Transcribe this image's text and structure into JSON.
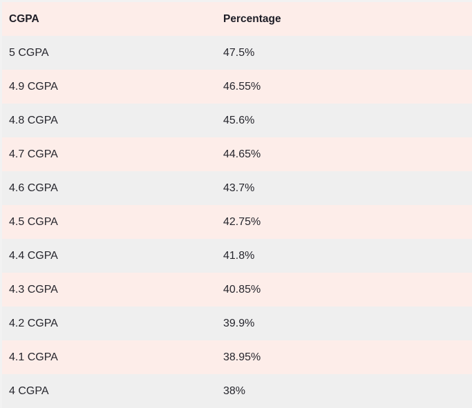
{
  "page": {
    "background": "#f2f2f2"
  },
  "table": {
    "colors": {
      "header_bg": "#fdede9",
      "row_pink": "#fdede9",
      "row_gray": "#efefef",
      "text": "#26262d",
      "header_text": "#1d1d26"
    },
    "columns": [
      {
        "key": "cgpa",
        "label": "CGPA"
      },
      {
        "key": "percentage",
        "label": "Percentage"
      }
    ],
    "rows": [
      {
        "cgpa": "5 CGPA",
        "percentage": "47.5%"
      },
      {
        "cgpa": "4.9 CGPA",
        "percentage": "46.55%"
      },
      {
        "cgpa": "4.8 CGPA",
        "percentage": "45.6%"
      },
      {
        "cgpa": "4.7 CGPA",
        "percentage": "44.65%"
      },
      {
        "cgpa": "4.6 CGPA",
        "percentage": "43.7%"
      },
      {
        "cgpa": "4.5 CGPA",
        "percentage": "42.75%"
      },
      {
        "cgpa": "4.4 CGPA",
        "percentage": "41.8%"
      },
      {
        "cgpa": "4.3 CGPA",
        "percentage": "40.85%"
      },
      {
        "cgpa": "4.2 CGPA",
        "percentage": "39.9%"
      },
      {
        "cgpa": "4.1 CGPA",
        "percentage": "38.95%"
      },
      {
        "cgpa": "4 CGPA",
        "percentage": "38%"
      }
    ]
  },
  "chart_data": {
    "type": "table",
    "columns": [
      "CGPA",
      "Percentage"
    ],
    "rows": [
      [
        "5 CGPA",
        "47.5%"
      ],
      [
        "4.9 CGPA",
        "46.55%"
      ],
      [
        "4.8 CGPA",
        "45.6%"
      ],
      [
        "4.7 CGPA",
        "44.65%"
      ],
      [
        "4.6 CGPA",
        "43.7%"
      ],
      [
        "4.5 CGPA",
        "42.75%"
      ],
      [
        "4.4 CGPA",
        "41.8%"
      ],
      [
        "4.3 CGPA",
        "40.85%"
      ],
      [
        "4.2 CGPA",
        "39.9%"
      ],
      [
        "4.1 CGPA",
        "38.95%"
      ],
      [
        "4 CGPA",
        "38%"
      ]
    ],
    "cgpa_values": [
      5,
      4.9,
      4.8,
      4.7,
      4.6,
      4.5,
      4.4,
      4.3,
      4.2,
      4.1,
      4
    ],
    "percentage_values": [
      47.5,
      46.55,
      45.6,
      44.65,
      43.7,
      42.75,
      41.8,
      40.85,
      39.9,
      38.95,
      38
    ]
  }
}
